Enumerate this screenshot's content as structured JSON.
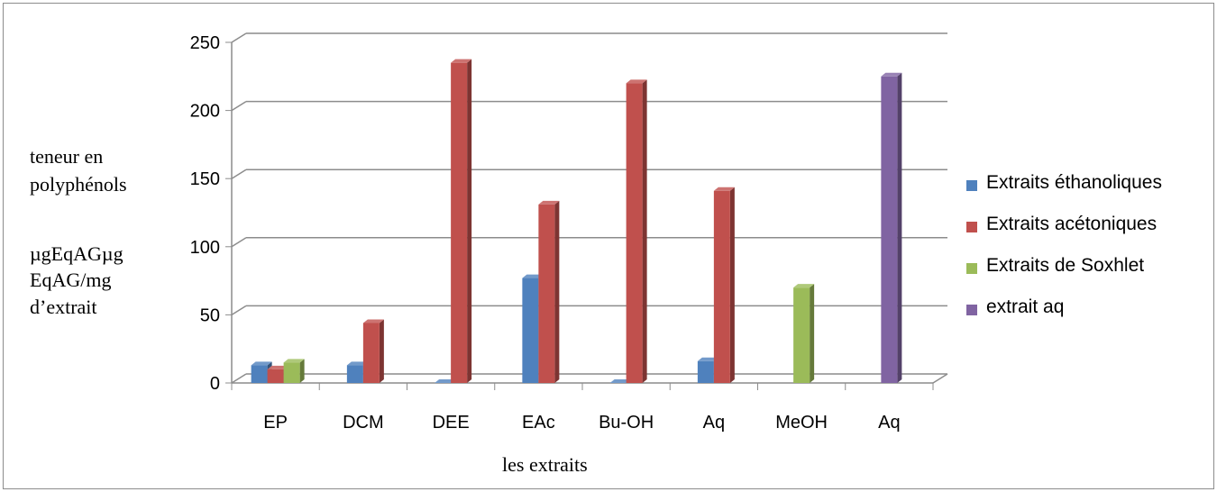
{
  "chart_data": {
    "type": "bar",
    "categories": [
      "EP",
      "DCM",
      "DEE",
      "EAc",
      "Bu-OH",
      "Aq",
      "MeOH",
      "Aq"
    ],
    "series": [
      {
        "name": "Extraits éthanoliques",
        "color": "#4F81BD",
        "values": [
          13,
          13,
          0,
          77,
          0,
          16,
          null,
          null
        ]
      },
      {
        "name": "Extraits acétoniques",
        "color": "#C0504D",
        "values": [
          10,
          44,
          235,
          131,
          220,
          141,
          null,
          null
        ]
      },
      {
        "name": "Extraits de Soxhlet",
        "color": "#9BBB59",
        "values": [
          15,
          null,
          null,
          null,
          null,
          null,
          70,
          null
        ]
      },
      {
        "name": "extrait aq",
        "color": "#8064A2",
        "values": [
          null,
          null,
          null,
          null,
          null,
          null,
          null,
          225
        ]
      }
    ],
    "ylim": [
      0,
      250
    ],
    "yticks": [
      0,
      50,
      100,
      150,
      200,
      250
    ],
    "grid": true,
    "legend": "right",
    "xlabel": "les extraits",
    "ylabel_lines": [
      "teneur  en",
      "polyphénols",
      "",
      "µgEqAGµg",
      "EqAG/mg",
      "d’extrait"
    ]
  }
}
